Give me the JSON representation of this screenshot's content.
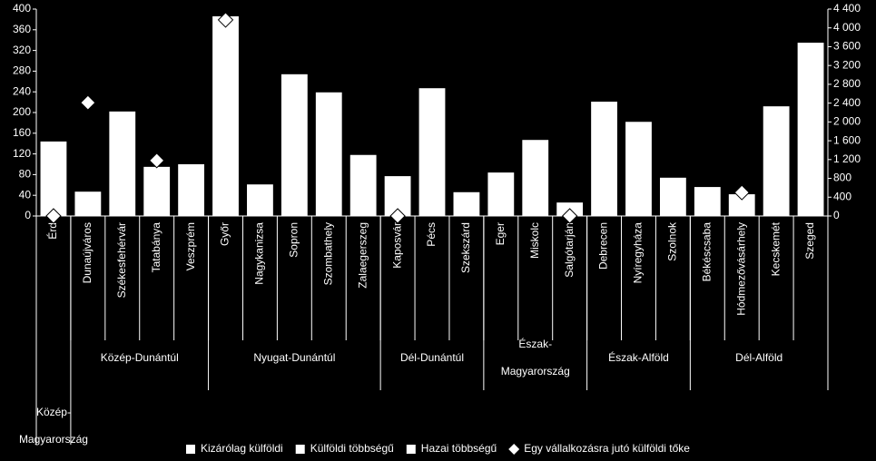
{
  "chart_data": {
    "type": "bar",
    "groups": [
      {
        "label": [
          "Közép-",
          "Magyarország"
        ],
        "categories": [
          "Érd"
        ]
      },
      {
        "label": [
          "Közép-Dunántúl"
        ],
        "categories": [
          "Dunaújváros",
          "Székesfehérvár",
          "Tatabánya",
          "Veszprém"
        ]
      },
      {
        "label": [
          "Nyugat-Dunántúl"
        ],
        "categories": [
          "Győr",
          "Nagykanizsa",
          "Sopron",
          "Szombathely",
          "Zalaegerszeg"
        ]
      },
      {
        "label": [
          "Dél-Dunántúl"
        ],
        "categories": [
          "Kaposvár",
          "Pécs",
          "Szekszárd"
        ]
      },
      {
        "label": [
          "Észak-",
          "Magyarország"
        ],
        "categories": [
          "Eger",
          "Miskolc",
          "Salgótarján"
        ]
      },
      {
        "label": [
          "Észak-Alföld"
        ],
        "categories": [
          "Debrecen",
          "Nyíregyháza",
          "Szolnok"
        ]
      },
      {
        "label": [
          "Dél-Alföld"
        ],
        "categories": [
          "Békéscsaba",
          "Hódmezővásárhely",
          "Kecskemét",
          "Szeged"
        ]
      }
    ],
    "series": [
      {
        "name": "Kizárólag külföldi",
        "color": "#ffffff",
        "values": [
          144,
          47,
          202,
          95,
          100,
          386,
          61,
          274,
          239,
          118,
          77,
          247,
          46,
          84,
          147,
          26,
          221,
          182,
          74,
          56,
          42,
          212,
          335
        ]
      },
      {
        "name": "Külföldi többségű",
        "color": "#ffffff",
        "values": [
          null,
          null,
          null,
          null,
          null,
          null,
          null,
          null,
          null,
          null,
          null,
          null,
          null,
          null,
          null,
          null,
          null,
          null,
          null,
          null,
          null,
          null,
          null
        ]
      },
      {
        "name": "Hazai többségű",
        "color": "#ffffff",
        "values": [
          null,
          null,
          null,
          null,
          null,
          null,
          null,
          null,
          null,
          null,
          null,
          null,
          null,
          null,
          null,
          null,
          null,
          null,
          null,
          null,
          null,
          null,
          null
        ]
      },
      {
        "name": "Egy vállalkozásra jutó külföldi tőke",
        "color": "#ffffff",
        "axis": "y2",
        "marker": "diamond",
        "values": [
          0,
          2410,
          null,
          1180,
          null,
          4170,
          null,
          null,
          null,
          null,
          0,
          null,
          null,
          null,
          null,
          0,
          null,
          null,
          null,
          null,
          500,
          null,
          null
        ]
      }
    ],
    "ylim": [
      0,
      400
    ],
    "yticks": [
      0,
      40,
      80,
      120,
      160,
      200,
      240,
      280,
      320,
      360,
      400
    ],
    "y2lim": [
      0,
      4400
    ],
    "y2ticks": [
      0,
      400,
      {
        "value": 800,
        "label": "800"
      },
      {
        "value": 1200,
        "label": "1 200"
      },
      {
        "value": 1600,
        "label": "1 600"
      },
      {
        "value": 2000,
        "label": "2 000"
      },
      {
        "value": 2400,
        "label": "2 400"
      },
      {
        "value": 2800,
        "label": "2 800"
      },
      {
        "value": 3200,
        "label": "3 200"
      },
      {
        "value": 3600,
        "label": "3 600"
      },
      {
        "value": 4000,
        "label": "4 000"
      },
      {
        "value": 4400,
        "label": "4 400"
      }
    ]
  }
}
